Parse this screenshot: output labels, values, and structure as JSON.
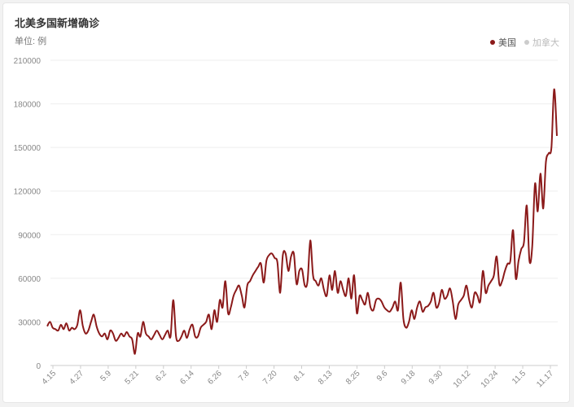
{
  "header": {
    "title": "北美多国新增确诊",
    "unit": "单位: 例"
  },
  "legend": {
    "items": [
      {
        "label": "美国",
        "color": "#8b1a1a",
        "active": true
      },
      {
        "label": "加拿大",
        "color": "#cccccc",
        "active": false
      }
    ]
  },
  "chart_data": {
    "type": "line",
    "title": "北美多国新增确诊",
    "ylabel": "单位: 例",
    "ylim": [
      0,
      210000
    ],
    "yticks": [
      "0",
      "30000",
      "60000",
      "90000",
      "120000",
      "150000",
      "180000",
      "210000"
    ],
    "xticks": [
      "4.15",
      "4.27",
      "5.9",
      "5.21",
      "6.2",
      "6.14",
      "6.26",
      "7.8",
      "7.20",
      "8.1",
      "8.13",
      "8.25",
      "9.6",
      "9.18",
      "9.30",
      "10.12",
      "10.24",
      "11.5",
      "11.17"
    ],
    "grid": true,
    "legend_position": "top-right",
    "series": [
      {
        "name": "美国",
        "color": "#8b1a1a",
        "values": [
          27000,
          30000,
          26000,
          25000,
          24000,
          28000,
          25000,
          29000,
          24000,
          26000,
          25000,
          28000,
          38000,
          27000,
          22000,
          24000,
          30000,
          35000,
          27000,
          22000,
          20000,
          22000,
          18000,
          24000,
          22000,
          17000,
          19000,
          22000,
          20000,
          23000,
          20000,
          18000,
          8000,
          22000,
          20000,
          30000,
          22000,
          20000,
          18000,
          21000,
          24000,
          21000,
          18000,
          21000,
          24000,
          20000,
          45000,
          20000,
          17000,
          20000,
          24000,
          19000,
          25000,
          28000,
          20000,
          20000,
          26000,
          28000,
          30000,
          35000,
          25000,
          38000,
          30000,
          45000,
          40000,
          58000,
          36000,
          40000,
          48000,
          52000,
          55000,
          48000,
          40000,
          55000,
          58000,
          62000,
          65000,
          68000,
          70000,
          57000,
          72000,
          76000,
          77000,
          74000,
          71000,
          50000,
          76000,
          77000,
          65000,
          75000,
          77000,
          56000,
          65000,
          66000,
          55000,
          58000,
          86000,
          62000,
          58000,
          55000,
          60000,
          52000,
          48000,
          62000,
          52000,
          65000,
          50000,
          58000,
          52000,
          48000,
          60000,
          46000,
          62000,
          36000,
          48000,
          45000,
          42000,
          50000,
          40000,
          38000,
          45000,
          46000,
          44000,
          40000,
          38000,
          37000,
          40000,
          44000,
          38000,
          57000,
          32000,
          26000,
          30000,
          38000,
          32000,
          40000,
          44000,
          37000,
          40000,
          41000,
          44000,
          50000,
          40000,
          43000,
          52000,
          46000,
          48000,
          53000,
          44000,
          32000,
          42000,
          45000,
          48000,
          55000,
          45000,
          40000,
          50000,
          48000,
          44000,
          65000,
          50000,
          55000,
          58000,
          62000,
          75000,
          56000,
          58000,
          65000,
          70000,
          72000,
          93000,
          60000,
          72000,
          80000,
          85000,
          110000,
          72000,
          82000,
          125000,
          106000,
          132000,
          108000,
          140000,
          146000,
          150000,
          190000,
          158000
        ]
      }
    ]
  }
}
